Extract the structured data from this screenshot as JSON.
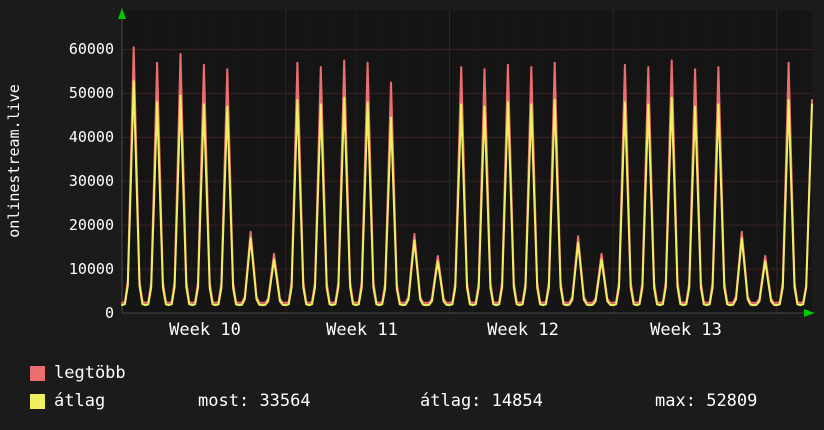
{
  "app": {
    "watermark": "onlinestream.live"
  },
  "chart_data": {
    "type": "line",
    "title": "",
    "xlabel": "",
    "ylabel": "",
    "ylim": [
      0,
      69000
    ],
    "grid": true,
    "legend_position": "bottom-left",
    "y_ticks": [
      "60000",
      "50000",
      "40000",
      "30000",
      "20000",
      "10000",
      "0"
    ],
    "x_ticks": [
      "Week 10",
      "Week 11",
      "Week 12",
      "Week 13"
    ],
    "days_per_week": 7,
    "last_day_partial": true,
    "series": [
      {
        "name": "legtöbb",
        "color": "#ed6e6e",
        "baseline": 2300,
        "day_peaks": [
          60500,
          57000,
          59000,
          56500,
          55500,
          18500,
          13500,
          57000,
          56000,
          57500,
          57000,
          52500,
          18000,
          13000,
          56000,
          55500,
          56500,
          56000,
          57000,
          17500,
          13500,
          56500,
          56000,
          57500,
          55500,
          56000,
          18500,
          13000,
          57000,
          48500
        ]
      },
      {
        "name": "átlag",
        "color": "#efef60",
        "baseline": 1800,
        "day_peaks": [
          52800,
          48000,
          49500,
          47500,
          47000,
          17000,
          12200,
          48500,
          47500,
          49000,
          48000,
          44500,
          16500,
          11800,
          47500,
          47000,
          48000,
          47500,
          48500,
          16000,
          12200,
          48000,
          47500,
          49000,
          47000,
          47500,
          17000,
          11800,
          48500,
          47500
        ]
      }
    ],
    "legend": {
      "max": {
        "label": "legtöbb",
        "color": "#ed6e6e"
      },
      "avg": {
        "label": "átlag",
        "color": "#efef60"
      }
    },
    "stats": {
      "most": {
        "label": "most:",
        "value": "33564"
      },
      "atlag": {
        "label": "átlag:",
        "value": "14854"
      },
      "max": {
        "label": "max:",
        "value": "52809"
      }
    },
    "colors": {
      "background": "#1b1b1b",
      "plot_background": "#151515",
      "grid_major": "#3c2222",
      "grid_minor": "#262626",
      "axis": "#4a4a4a",
      "arrow": "#00c800",
      "text": "#ffffff"
    }
  }
}
